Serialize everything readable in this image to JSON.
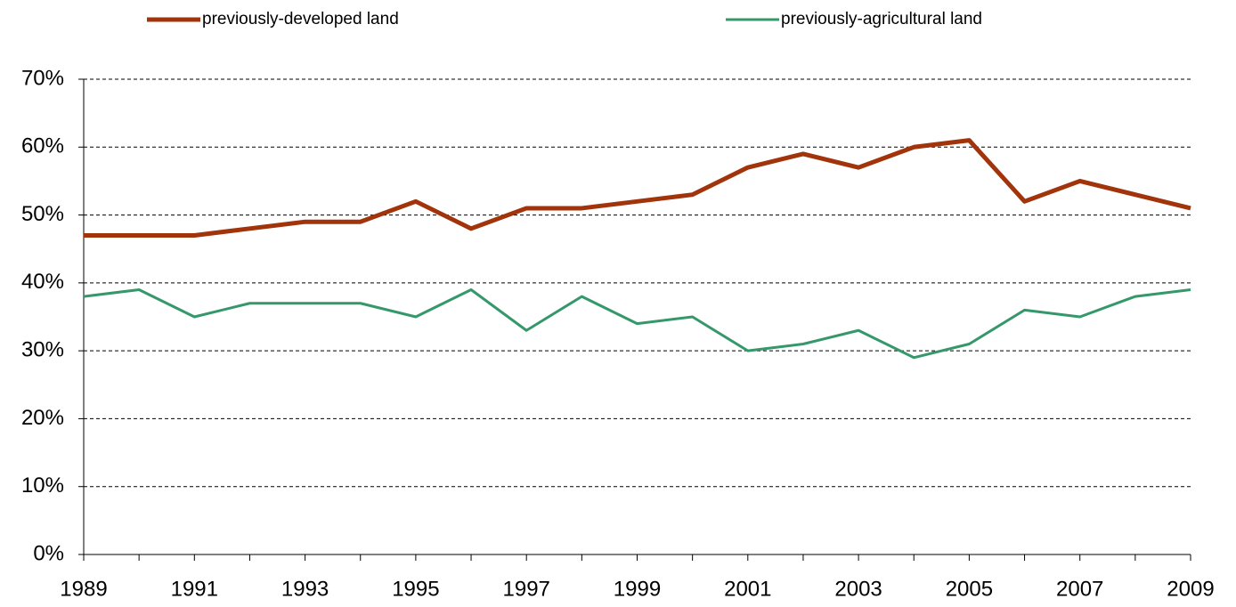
{
  "chart_data": {
    "type": "line",
    "x": [
      1989,
      1990,
      1991,
      1992,
      1993,
      1994,
      1995,
      1996,
      1997,
      1998,
      1999,
      2000,
      2001,
      2002,
      2003,
      2004,
      2005,
      2006,
      2007,
      2008,
      2009
    ],
    "series": [
      {
        "name": "previously-developed land",
        "color": "#a2340c",
        "values": [
          47,
          47,
          47,
          48,
          49,
          49,
          52,
          48,
          51,
          51,
          52,
          53,
          57,
          59,
          57,
          60,
          61,
          52,
          55,
          53,
          51
        ]
      },
      {
        "name": "previously-agricultural land",
        "color": "#35986a",
        "values": [
          38,
          39,
          35,
          37,
          37,
          37,
          35,
          39,
          33,
          38,
          34,
          35,
          30,
          31,
          33,
          29,
          31,
          36,
          35,
          38,
          39
        ]
      }
    ],
    "xlim": [
      1989,
      2009
    ],
    "xticks": [
      1989,
      1991,
      1993,
      1995,
      1997,
      1999,
      2001,
      2003,
      2005,
      2007,
      2009
    ],
    "ylim": [
      0,
      70
    ],
    "yticks": [
      {
        "value": 0,
        "label": "0%"
      },
      {
        "value": 10,
        "label": "10%"
      },
      {
        "value": 20,
        "label": "20%"
      },
      {
        "value": 30,
        "label": "30%"
      },
      {
        "value": 40,
        "label": "40%"
      },
      {
        "value": 50,
        "label": "50%"
      },
      {
        "value": 60,
        "label": "60%"
      },
      {
        "value": 70,
        "label": "70%"
      }
    ],
    "grid": true
  }
}
